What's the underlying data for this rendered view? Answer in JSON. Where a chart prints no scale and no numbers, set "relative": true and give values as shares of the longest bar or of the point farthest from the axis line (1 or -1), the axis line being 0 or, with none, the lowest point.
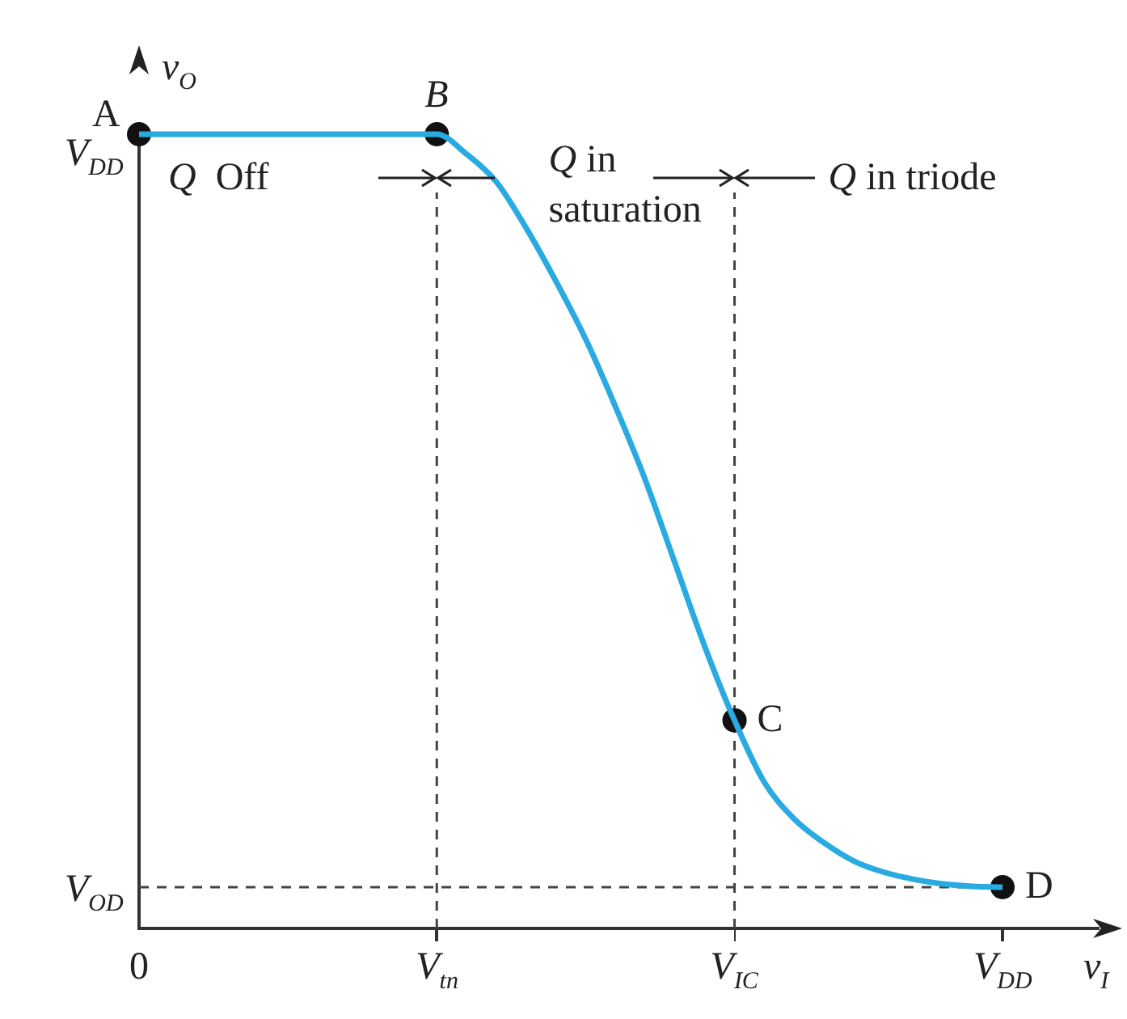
{
  "chart_data": {
    "type": "line",
    "relative": true,
    "xlabel": "v$_{I}$",
    "ylabel": "v$_{O}$",
    "categories": [
      "0",
      null,
      null,
      null,
      null,
      null,
      null,
      null,
      null,
      null,
      "V$_{tn}$",
      null,
      null,
      null,
      null,
      null,
      null,
      null,
      null,
      null,
      "V$_{IC}$",
      null,
      null,
      null,
      null,
      null,
      null,
      null,
      null,
      "V$_{DD}$"
    ],
    "grid": false,
    "legend": false,
    "series": [
      {
        "type": "line",
        "color": "#29abe2",
        "marker": "none",
        "values": [
          1,
          1,
          1,
          1,
          1,
          1,
          1,
          1,
          1,
          1,
          1,
          0.975,
          0.94,
          0.882,
          0.815,
          0.742,
          0.657,
          0.565,
          0.46,
          0.355,
          0.262,
          0.184,
          0.138,
          0.108,
          0.085,
          0.071,
          0.062,
          0.056,
          0.053,
          0.052
        ]
      },
      {
        "type": "scatter",
        "color": "#111111",
        "marker": "circle",
        "values": [
          1,
          null,
          null,
          null,
          null,
          null,
          null,
          null,
          null,
          null,
          1,
          null,
          null,
          null,
          null,
          null,
          null,
          null,
          null,
          null,
          0.262,
          null,
          null,
          null,
          null,
          null,
          null,
          null,
          null,
          0.052
        ]
      }
    ],
    "ref_lines": [
      {
        "axis": "x",
        "value": "V$_{tn}$",
        "line_style": "dashed",
        "color": "#444444"
      },
      {
        "axis": "x",
        "value": "V$_{IC}$",
        "line_style": "dashed",
        "color": "#444444"
      },
      {
        "axis": "y",
        "value": 0.052,
        "label": "V$_{OD}$",
        "line_style": "dashed",
        "color": "#444444"
      }
    ],
    "annotations": [
      {
        "text": "A",
        "x": "0",
        "y": 1
      },
      {
        "text": "B",
        "x": "V$_{tn}$",
        "y": 1
      },
      {
        "text": "C",
        "x": "V$_{IC}$",
        "y": 0.262
      },
      {
        "text": "D",
        "x": "V$_{DD}$",
        "y": 0.052
      },
      {
        "text": "V$_{DD}$",
        "x": "0",
        "y": 1
      },
      "Q  Off",
      "Q in saturation",
      "Q in triode"
    ]
  }
}
